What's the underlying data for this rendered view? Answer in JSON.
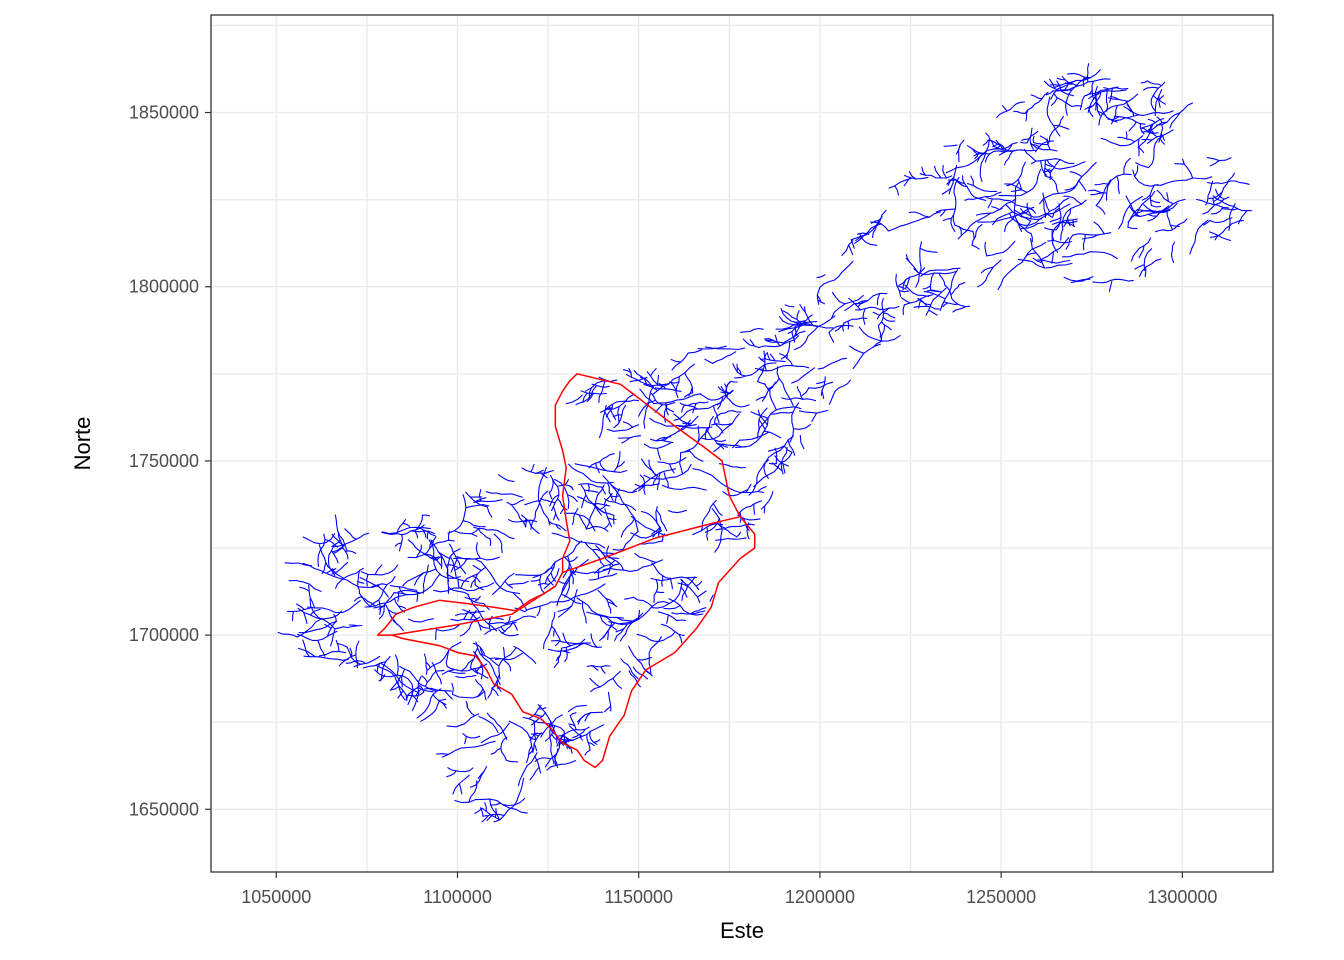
{
  "map": {
    "xlabel": "Este",
    "ylabel": "Norte",
    "x_ticks": [
      1050000,
      1100000,
      1150000,
      1200000,
      1250000,
      1300000
    ],
    "y_ticks": [
      1650000,
      1700000,
      1750000,
      1800000,
      1850000
    ],
    "xlim": [
      1032000,
      1325000
    ],
    "ylim": [
      1632000,
      1878000
    ],
    "grid": true,
    "colors": {
      "rivers": "#0000ff",
      "basin": "#ff0000",
      "grid": "#ebebeb",
      "panel_border": "#333333"
    }
  },
  "chart_data": {
    "type": "map",
    "layers": [
      {
        "kind": "river network",
        "color": "#0000ff"
      },
      {
        "kind": "basin outline",
        "color": "#ff0000",
        "boundary": [
          [
            1133000,
            1775000
          ],
          [
            1145000,
            1772000
          ],
          [
            1150000,
            1768000
          ],
          [
            1160000,
            1760000
          ],
          [
            1168000,
            1754000
          ],
          [
            1173000,
            1750000
          ],
          [
            1175000,
            1740000
          ],
          [
            1178000,
            1734000
          ],
          [
            1182000,
            1729000
          ],
          [
            1182000,
            1725000
          ],
          [
            1178000,
            1722000
          ],
          [
            1172000,
            1715000
          ],
          [
            1170000,
            1708000
          ],
          [
            1166000,
            1702000
          ],
          [
            1160000,
            1695000
          ],
          [
            1152000,
            1690000
          ],
          [
            1148000,
            1684000
          ],
          [
            1146000,
            1677000
          ],
          [
            1142000,
            1671000
          ],
          [
            1140000,
            1664000
          ],
          [
            1138000,
            1662000
          ],
          [
            1135000,
            1664000
          ],
          [
            1133000,
            1667000
          ],
          [
            1129000,
            1669000
          ],
          [
            1126000,
            1673000
          ],
          [
            1123000,
            1676000
          ],
          [
            1118000,
            1678000
          ],
          [
            1115000,
            1683000
          ],
          [
            1110000,
            1686000
          ],
          [
            1108000,
            1690000
          ],
          [
            1105000,
            1694000
          ],
          [
            1100000,
            1695000
          ],
          [
            1095000,
            1697000
          ],
          [
            1090000,
            1698000
          ],
          [
            1085000,
            1699000
          ],
          [
            1082000,
            1700000
          ],
          [
            1078000,
            1700000
          ],
          [
            1080000,
            1702000
          ],
          [
            1083000,
            1706000
          ],
          [
            1088000,
            1708000
          ],
          [
            1095000,
            1710000
          ],
          [
            1103000,
            1709000
          ],
          [
            1110000,
            1708000
          ],
          [
            1116000,
            1707000
          ],
          [
            1120000,
            1710000
          ],
          [
            1124000,
            1712000
          ],
          [
            1127000,
            1714000
          ],
          [
            1129000,
            1718000
          ],
          [
            1129000,
            1722000
          ],
          [
            1131000,
            1727000
          ],
          [
            1130000,
            1733000
          ],
          [
            1129000,
            1740000
          ],
          [
            1130000,
            1748000
          ],
          [
            1129000,
            1753000
          ],
          [
            1127000,
            1760000
          ],
          [
            1127000,
            1766000
          ],
          [
            1129000,
            1770000
          ],
          [
            1131000,
            1773000
          ],
          [
            1133000,
            1775000
          ]
        ]
      }
    ]
  }
}
